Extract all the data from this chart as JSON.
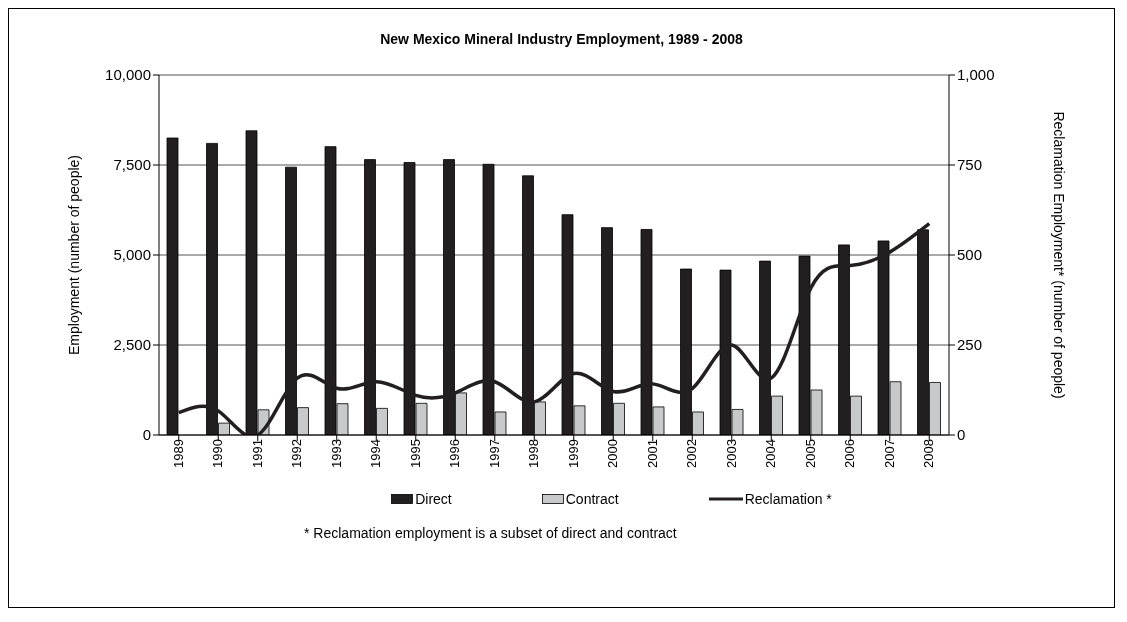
{
  "chart_data": {
    "type": "bar",
    "title": "New Mexico Mineral Industry Employment, 1989 - 2008",
    "ylabel": "Employment (number of people)",
    "y2label": "Reclamation Employment* (number of people)",
    "categories": [
      "1989",
      "1990",
      "1991",
      "1992",
      "1993",
      "1994",
      "1995",
      "1996",
      "1997",
      "1998",
      "1999",
      "2000",
      "2001",
      "2002",
      "2003",
      "2004",
      "2005",
      "2006",
      "2007",
      "2008"
    ],
    "series": [
      {
        "name": "Direct",
        "color": "#231f20",
        "values": [
          8250,
          8100,
          8450,
          7440,
          8010,
          7650,
          7570,
          7650,
          7520,
          7200,
          6120,
          5760,
          5710,
          4610,
          4580,
          4830,
          4970,
          5280,
          5390,
          5700
        ]
      },
      {
        "name": "Contract",
        "color": "#c8c9ca",
        "values": [
          null,
          330,
          700,
          760,
          870,
          740,
          880,
          1170,
          640,
          920,
          810,
          880,
          780,
          640,
          710,
          1080,
          1250,
          1080,
          1480,
          1460
        ]
      },
      {
        "name": "Reclamation *",
        "type": "line",
        "axis": "y2",
        "color": "#231f20",
        "values": [
          62,
          67,
          0,
          158,
          130,
          148,
          110,
          117,
          148,
          92,
          171,
          121,
          142,
          129,
          250,
          158,
          408,
          471,
          508,
          587
        ]
      }
    ],
    "ylim": [
      0,
      10000
    ],
    "yticks": [
      {
        "value": 0,
        "label": "0"
      },
      {
        "value": 2500,
        "label": "2,500"
      },
      {
        "value": 5000,
        "label": "5,000"
      },
      {
        "value": 7500,
        "label": "7,500"
      },
      {
        "value": 10000,
        "label": "10,000"
      }
    ],
    "y2lim": [
      0,
      1000
    ],
    "y2ticks": [
      {
        "value": 0,
        "label": "0"
      },
      {
        "value": 250,
        "label": "250"
      },
      {
        "value": 500,
        "label": "500"
      },
      {
        "value": 750,
        "label": "750"
      },
      {
        "value": 1000,
        "label": "1,000"
      }
    ],
    "grid": "y",
    "legend": "bottom",
    "marker": "none",
    "line_style": "solid",
    "annotations": [
      "* Reclamation employment is a subset of direct and contract"
    ]
  }
}
